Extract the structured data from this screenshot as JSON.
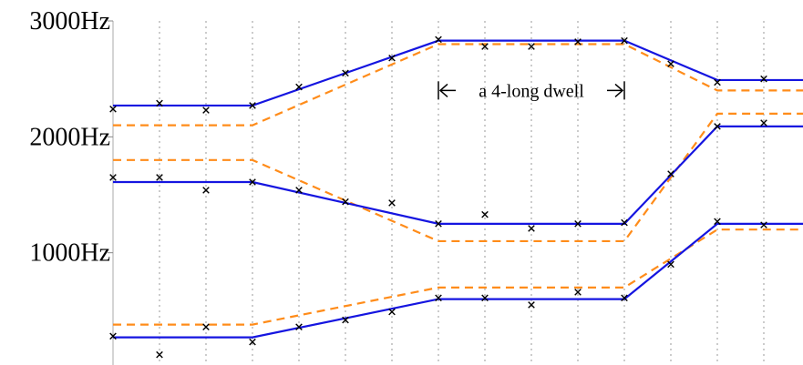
{
  "chart_data": {
    "type": "line",
    "title": "",
    "xlabel": "",
    "ylabel": "",
    "x": [
      0,
      1,
      2,
      3,
      4,
      5,
      6,
      7,
      8,
      9,
      10,
      11,
      12,
      13,
      14,
      15
    ],
    "xlim": [
      0,
      15
    ],
    "ylim": [
      0,
      3000
    ],
    "y_ticks": [
      {
        "value": 1000,
        "label": "1000Hz"
      },
      {
        "value": 2000,
        "label": "2000Hz"
      },
      {
        "value": 3000,
        "label": "3000Hz"
      }
    ],
    "grid": "vertical dotted lines at each x position",
    "legend": "none",
    "annotation": {
      "text": "a 4-long dwell",
      "x_start": 7,
      "x_end": 11,
      "y": 2400
    },
    "fitted_lines": [
      {
        "color": "#1515e0",
        "x": [
          0,
          3,
          7,
          11,
          13,
          15
        ],
        "y": [
          2270,
          2270,
          2830,
          2830,
          2490,
          2490
        ]
      },
      {
        "color": "#1515e0",
        "x": [
          0,
          3,
          7,
          11,
          13,
          15
        ],
        "y": [
          1610,
          1610,
          1250,
          1250,
          2090,
          2090
        ]
      },
      {
        "color": "#1515e0",
        "x": [
          0,
          3,
          7,
          11,
          13,
          15
        ],
        "y": [
          270,
          270,
          600,
          600,
          1250,
          1250
        ]
      }
    ],
    "reference_lines": [
      {
        "color": "#ff8c1a",
        "x": [
          0,
          3,
          7,
          11,
          13,
          15
        ],
        "y": [
          2100,
          2100,
          2800,
          2800,
          2400,
          2400
        ]
      },
      {
        "color": "#ff8c1a",
        "x": [
          0,
          3,
          7,
          11,
          13,
          15
        ],
        "y": [
          1800,
          1800,
          1100,
          1100,
          2200,
          2200
        ]
      },
      {
        "color": "#ff8c1a",
        "x": [
          0,
          3,
          7,
          11,
          13,
          15
        ],
        "y": [
          380,
          380,
          700,
          700,
          1200,
          1200
        ]
      }
    ],
    "observations": [
      {
        "x": [
          0,
          1,
          2,
          3,
          4,
          5,
          6,
          7,
          8,
          9,
          10,
          11,
          12,
          13,
          14
        ],
        "y": [
          2240,
          2290,
          2230,
          2270,
          2430,
          2550,
          2680,
          2840,
          2780,
          2780,
          2820,
          2830,
          2630,
          2470,
          2500
        ]
      },
      {
        "x": [
          0,
          1,
          2,
          3,
          4,
          5,
          6,
          7,
          8,
          9,
          10,
          11,
          12,
          13,
          14
        ],
        "y": [
          1650,
          1650,
          1540,
          1610,
          1540,
          1440,
          1430,
          1250,
          1330,
          1210,
          1250,
          1260,
          1680,
          2090,
          2120
        ]
      },
      {
        "x": [
          0,
          1,
          2,
          3,
          4,
          5,
          6,
          7,
          8,
          9,
          10,
          11,
          12,
          13,
          14
        ],
        "y": [
          280,
          120,
          360,
          230,
          360,
          420,
          490,
          610,
          610,
          550,
          660,
          610,
          900,
          1270,
          1240
        ]
      }
    ],
    "marker_color": "#000000"
  }
}
